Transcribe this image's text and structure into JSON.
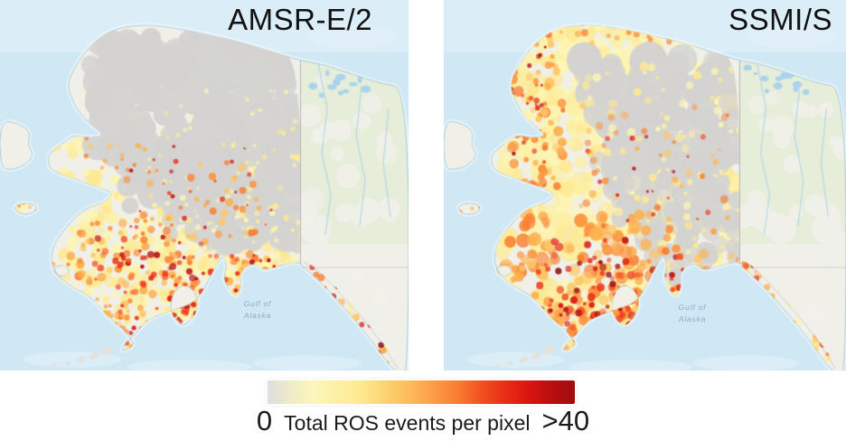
{
  "panels": [
    {
      "title": "AMSR-E/2",
      "ocean_label": {
        "line1": "Gulf of",
        "line2": "Alaska"
      }
    },
    {
      "title": "SSMI/S",
      "ocean_label": {
        "line1": "Gulf of",
        "line2": "Alaska"
      }
    }
  ],
  "legend": {
    "min_label": "0",
    "label": "Total ROS events per pixel",
    "max_label": ">40",
    "gradient_stops": [
      "#dedede",
      "#efecc6",
      "#fcf6bc",
      "#fdf0a4",
      "#fee88e",
      "#fdd373",
      "#fdbb5c",
      "#fd9d46",
      "#fa7c32",
      "#f35322",
      "#e92f17",
      "#d91511",
      "#bb0e10",
      "#9e0d10"
    ]
  },
  "map_colors": {
    "ocean": "#cfe8f4",
    "ocean_light": "#e6f3fa",
    "land_base": "#f0f0e9",
    "canada_green": "#e4ecd4",
    "no_data_gray": "#d4d3d1",
    "coastline": "#9cc2d6",
    "border": "#8f85a0",
    "water_feature": "#aad4ec",
    "heat_yellow": [
      "#fdf5b4",
      "#fdf0a2",
      "#fee992"
    ],
    "heat_orange": [
      "#fdc768",
      "#fdb050",
      "#fc9440",
      "#f97f33"
    ],
    "heat_red": [
      "#f4562b",
      "#ec321c",
      "#d91613",
      "#bb0f10"
    ],
    "heat_darkred": [
      "#a50d10",
      "#8f0b0e"
    ]
  }
}
